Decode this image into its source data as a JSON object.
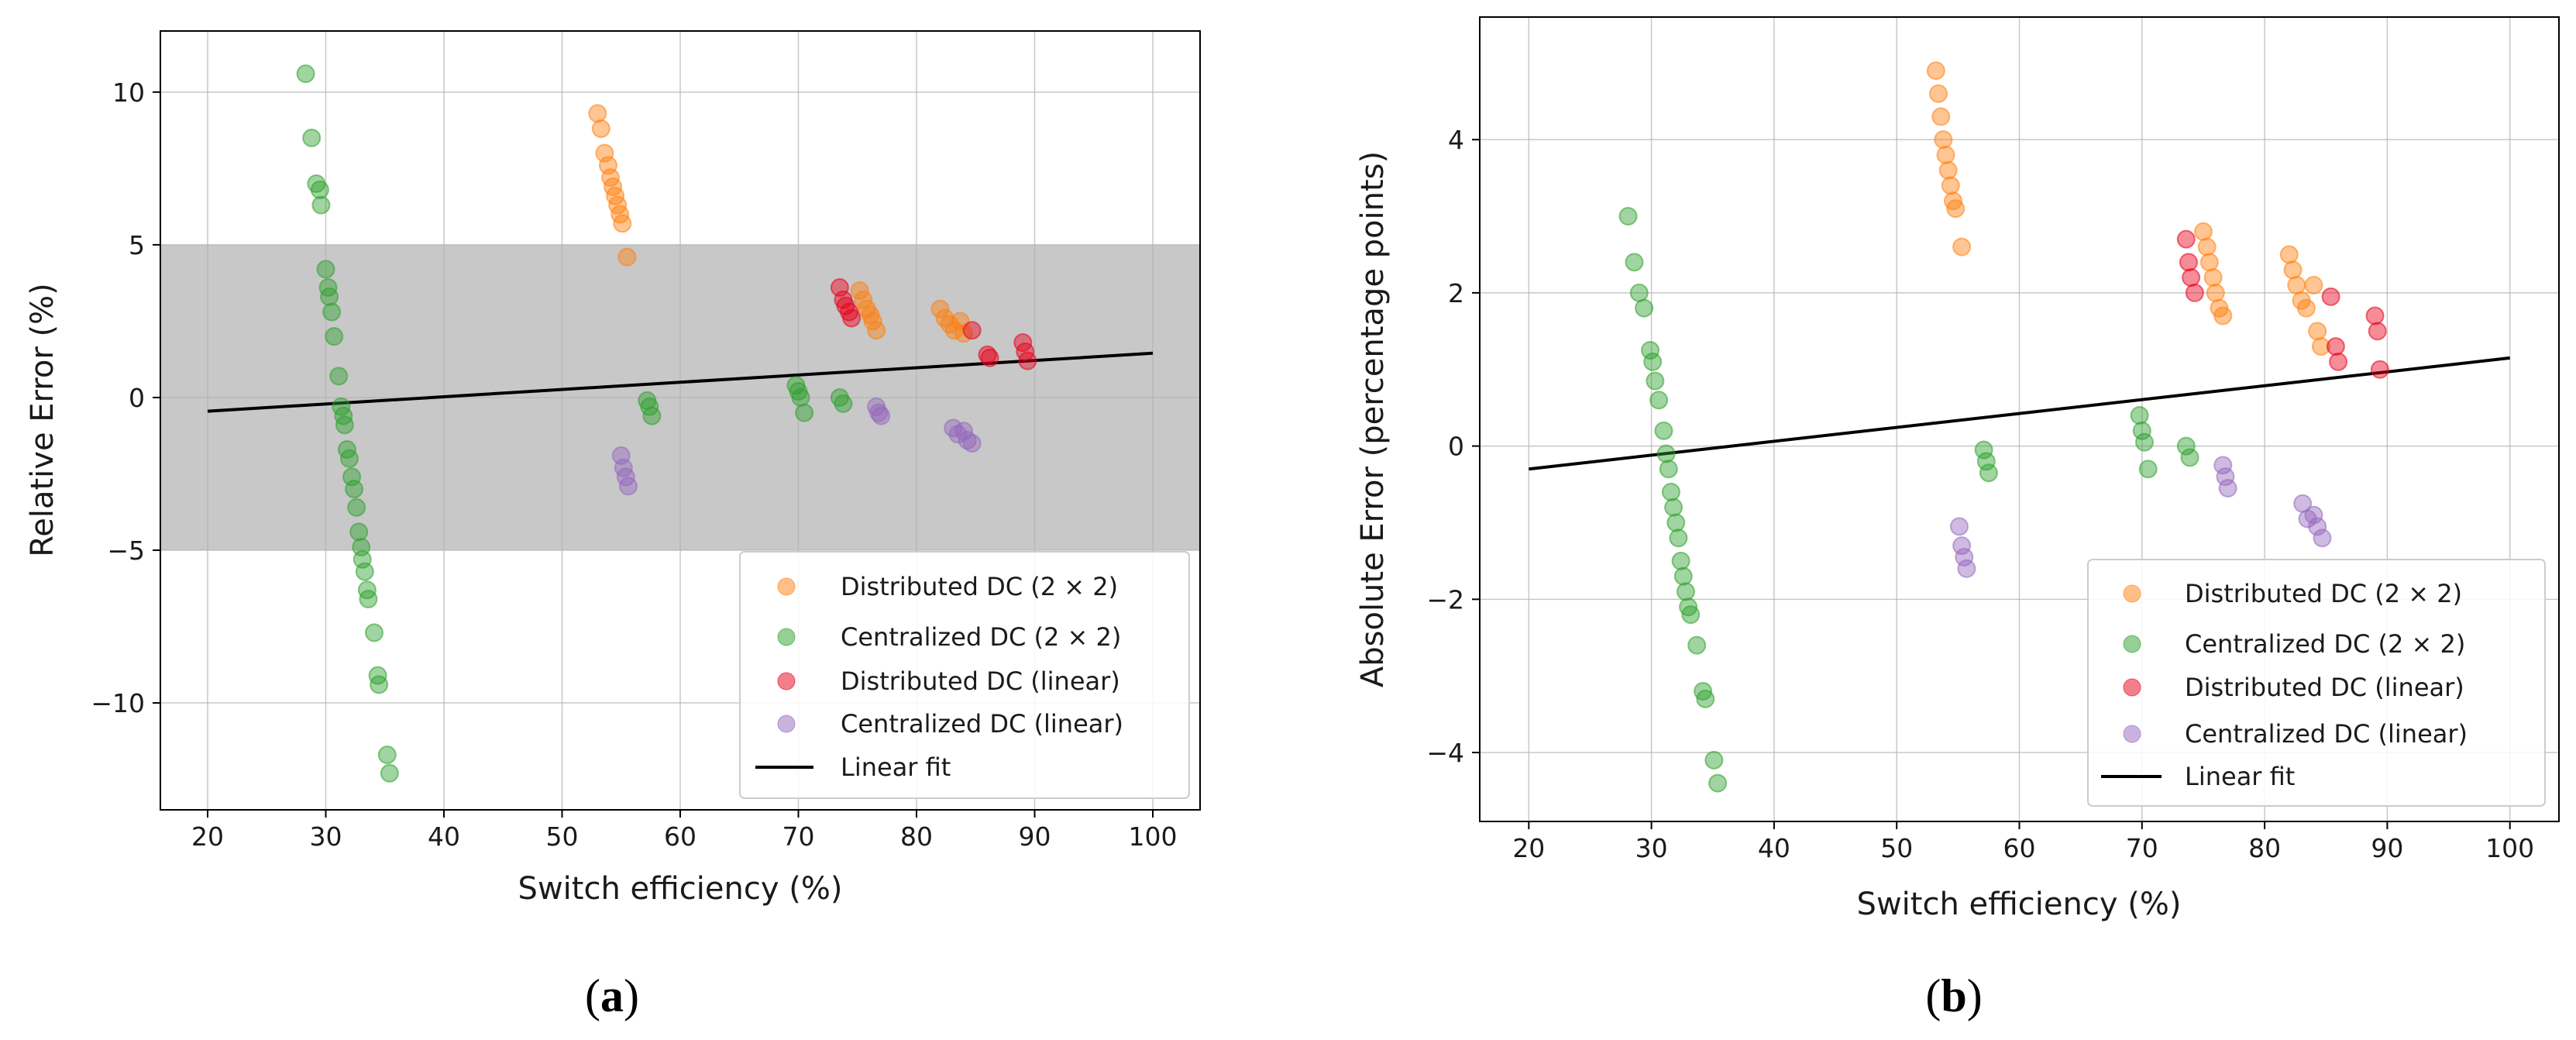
{
  "figure": {
    "panel_a_label": {
      "open": "(",
      "letter": "a",
      "close": ")"
    },
    "panel_b_label": {
      "open": "(",
      "letter": "b",
      "close": ")"
    }
  },
  "colors": {
    "distributed_2x2": "#ff7f0e",
    "centralized_2x2": "#2ca02c",
    "distributed_linear": "#e8001a",
    "centralized_linear": "#9467bd",
    "fit_line": "#000000",
    "band": "#c8c8c8",
    "grid": "#cfcfcf"
  },
  "chart_data": [
    {
      "id": "panel-a",
      "type": "scatter",
      "xlabel": "Switch efficiency (%)",
      "ylabel": "Relative Error (%)",
      "xlim": [
        16,
        104
      ],
      "ylim": [
        -13.5,
        12
      ],
      "xticks": [
        20,
        30,
        40,
        50,
        60,
        70,
        80,
        90,
        100
      ],
      "yticks": [
        -10,
        -5,
        0,
        5,
        10
      ],
      "grid": true,
      "shaded_band": {
        "y_from": -5,
        "y_to": 5
      },
      "legend_position": "bottom-right",
      "series": [
        {
          "name": "Distributed DC (2 × 2)",
          "color_key": "distributed_2x2",
          "points": [
            [
              53.0,
              9.3
            ],
            [
              53.3,
              8.8
            ],
            [
              53.6,
              8.0
            ],
            [
              53.9,
              7.6
            ],
            [
              54.1,
              7.2
            ],
            [
              54.3,
              6.9
            ],
            [
              54.5,
              6.6
            ],
            [
              54.7,
              6.3
            ],
            [
              54.9,
              6.0
            ],
            [
              55.1,
              5.7
            ],
            [
              55.5,
              4.6
            ],
            [
              75.2,
              3.5
            ],
            [
              75.5,
              3.2
            ],
            [
              75.8,
              2.9
            ],
            [
              76.1,
              2.7
            ],
            [
              76.3,
              2.5
            ],
            [
              76.6,
              2.2
            ],
            [
              82.0,
              2.9
            ],
            [
              82.4,
              2.6
            ],
            [
              82.8,
              2.4
            ],
            [
              83.2,
              2.2
            ],
            [
              83.7,
              2.5
            ],
            [
              84.0,
              2.1
            ]
          ]
        },
        {
          "name": "Centralized DC (2 × 2)",
          "color_key": "centralized_2x2",
          "points": [
            [
              28.3,
              10.6
            ],
            [
              28.8,
              8.5
            ],
            [
              29.2,
              7.0
            ],
            [
              29.5,
              6.8
            ],
            [
              29.6,
              6.3
            ],
            [
              30.0,
              4.2
            ],
            [
              30.2,
              3.6
            ],
            [
              30.3,
              3.3
            ],
            [
              30.5,
              2.8
            ],
            [
              30.7,
              2.0
            ],
            [
              31.1,
              0.7
            ],
            [
              31.3,
              -0.3
            ],
            [
              31.5,
              -0.6
            ],
            [
              31.6,
              -0.9
            ],
            [
              31.8,
              -1.7
            ],
            [
              32.0,
              -2.0
            ],
            [
              32.2,
              -2.6
            ],
            [
              32.4,
              -3.0
            ],
            [
              32.6,
              -3.6
            ],
            [
              32.8,
              -4.4
            ],
            [
              33.0,
              -4.9
            ],
            [
              33.1,
              -5.3
            ],
            [
              33.3,
              -5.7
            ],
            [
              33.5,
              -6.3
            ],
            [
              33.6,
              -6.6
            ],
            [
              34.1,
              -7.7
            ],
            [
              34.4,
              -9.1
            ],
            [
              34.5,
              -9.4
            ],
            [
              35.2,
              -11.7
            ],
            [
              35.4,
              -12.3
            ],
            [
              57.2,
              -0.1
            ],
            [
              57.4,
              -0.3
            ],
            [
              57.6,
              -0.6
            ],
            [
              69.8,
              0.4
            ],
            [
              70.0,
              0.2
            ],
            [
              70.2,
              0.0
            ],
            [
              70.5,
              -0.5
            ],
            [
              73.5,
              0.0
            ],
            [
              73.8,
              -0.2
            ]
          ]
        },
        {
          "name": "Distributed DC (linear)",
          "color_key": "distributed_linear",
          "points": [
            [
              73.5,
              3.6
            ],
            [
              73.8,
              3.2
            ],
            [
              74.0,
              3.0
            ],
            [
              74.3,
              2.8
            ],
            [
              74.5,
              2.6
            ],
            [
              84.7,
              2.2
            ],
            [
              86.0,
              1.4
            ],
            [
              86.2,
              1.3
            ],
            [
              89.0,
              1.8
            ],
            [
              89.2,
              1.5
            ],
            [
              89.4,
              1.2
            ]
          ]
        },
        {
          "name": "Centralized DC (linear)",
          "color_key": "centralized_linear",
          "points": [
            [
              55.0,
              -1.9
            ],
            [
              55.2,
              -2.3
            ],
            [
              55.4,
              -2.6
            ],
            [
              55.6,
              -2.9
            ],
            [
              76.6,
              -0.3
            ],
            [
              76.8,
              -0.5
            ],
            [
              77.0,
              -0.6
            ],
            [
              83.1,
              -1.0
            ],
            [
              83.5,
              -1.2
            ],
            [
              84.0,
              -1.1
            ],
            [
              84.3,
              -1.4
            ],
            [
              84.7,
              -1.5
            ]
          ]
        }
      ],
      "fit": {
        "name": "Linear fit",
        "x": [
          20,
          100
        ],
        "y": [
          -0.45,
          1.45
        ]
      }
    },
    {
      "id": "panel-b",
      "type": "scatter",
      "xlabel": "Switch efficiency (%)",
      "ylabel": "Absolute Error (percentage points)",
      "xlim": [
        16,
        104
      ],
      "ylim": [
        -4.9,
        5.6
      ],
      "xticks": [
        20,
        30,
        40,
        50,
        60,
        70,
        80,
        90,
        100
      ],
      "yticks": [
        -4,
        -2,
        0,
        2,
        4
      ],
      "grid": true,
      "legend_position": "bottom-right",
      "series": [
        {
          "name": "Distributed DC (2 × 2)",
          "color_key": "distributed_2x2",
          "points": [
            [
              53.2,
              4.9
            ],
            [
              53.4,
              4.6
            ],
            [
              53.6,
              4.3
            ],
            [
              53.8,
              4.0
            ],
            [
              54.0,
              3.8
            ],
            [
              54.2,
              3.6
            ],
            [
              54.4,
              3.4
            ],
            [
              54.6,
              3.2
            ],
            [
              54.8,
              3.1
            ],
            [
              55.3,
              2.6
            ],
            [
              75.0,
              2.8
            ],
            [
              75.3,
              2.6
            ],
            [
              75.5,
              2.4
            ],
            [
              75.8,
              2.2
            ],
            [
              76.0,
              2.0
            ],
            [
              76.3,
              1.8
            ],
            [
              76.6,
              1.7
            ],
            [
              82.0,
              2.5
            ],
            [
              82.3,
              2.3
            ],
            [
              82.6,
              2.1
            ],
            [
              83.0,
              1.9
            ],
            [
              83.4,
              1.8
            ],
            [
              84.0,
              2.1
            ],
            [
              84.3,
              1.5
            ],
            [
              84.6,
              1.3
            ]
          ]
        },
        {
          "name": "Centralized DC (2 × 2)",
          "color_key": "centralized_2x2",
          "points": [
            [
              28.1,
              3.0
            ],
            [
              28.6,
              2.4
            ],
            [
              29.0,
              2.0
            ],
            [
              29.4,
              1.8
            ],
            [
              29.9,
              1.25
            ],
            [
              30.1,
              1.1
            ],
            [
              30.3,
              0.85
            ],
            [
              30.6,
              0.6
            ],
            [
              31.0,
              0.2
            ],
            [
              31.2,
              -0.1
            ],
            [
              31.4,
              -0.3
            ],
            [
              31.6,
              -0.6
            ],
            [
              31.8,
              -0.8
            ],
            [
              32.0,
              -1.0
            ],
            [
              32.2,
              -1.2
            ],
            [
              32.4,
              -1.5
            ],
            [
              32.6,
              -1.7
            ],
            [
              32.8,
              -1.9
            ],
            [
              33.0,
              -2.1
            ],
            [
              33.2,
              -2.2
            ],
            [
              33.7,
              -2.6
            ],
            [
              34.2,
              -3.2
            ],
            [
              34.4,
              -3.3
            ],
            [
              35.1,
              -4.1
            ],
            [
              35.4,
              -4.4
            ],
            [
              57.1,
              -0.05
            ],
            [
              57.3,
              -0.2
            ],
            [
              57.5,
              -0.35
            ],
            [
              69.8,
              0.4
            ],
            [
              70.0,
              0.2
            ],
            [
              70.2,
              0.05
            ],
            [
              70.5,
              -0.3
            ],
            [
              73.6,
              0.0
            ],
            [
              73.9,
              -0.15
            ]
          ]
        },
        {
          "name": "Distributed DC (linear)",
          "color_key": "distributed_linear",
          "points": [
            [
              73.6,
              2.7
            ],
            [
              73.8,
              2.4
            ],
            [
              74.0,
              2.2
            ],
            [
              74.3,
              2.0
            ],
            [
              85.4,
              1.95
            ],
            [
              85.8,
              1.3
            ],
            [
              86.0,
              1.1
            ],
            [
              89.0,
              1.7
            ],
            [
              89.2,
              1.5
            ],
            [
              89.4,
              1.0
            ]
          ]
        },
        {
          "name": "Centralized DC (linear)",
          "color_key": "centralized_linear",
          "points": [
            [
              55.1,
              -1.05
            ],
            [
              55.3,
              -1.3
            ],
            [
              55.5,
              -1.45
            ],
            [
              55.7,
              -1.6
            ],
            [
              76.6,
              -0.25
            ],
            [
              76.8,
              -0.4
            ],
            [
              77.0,
              -0.55
            ],
            [
              83.1,
              -0.75
            ],
            [
              83.5,
              -0.95
            ],
            [
              84.0,
              -0.9
            ],
            [
              84.3,
              -1.05
            ],
            [
              84.7,
              -1.2
            ]
          ]
        }
      ],
      "fit": {
        "name": "Linear fit",
        "x": [
          20,
          100
        ],
        "y": [
          -0.3,
          1.15
        ]
      }
    }
  ]
}
